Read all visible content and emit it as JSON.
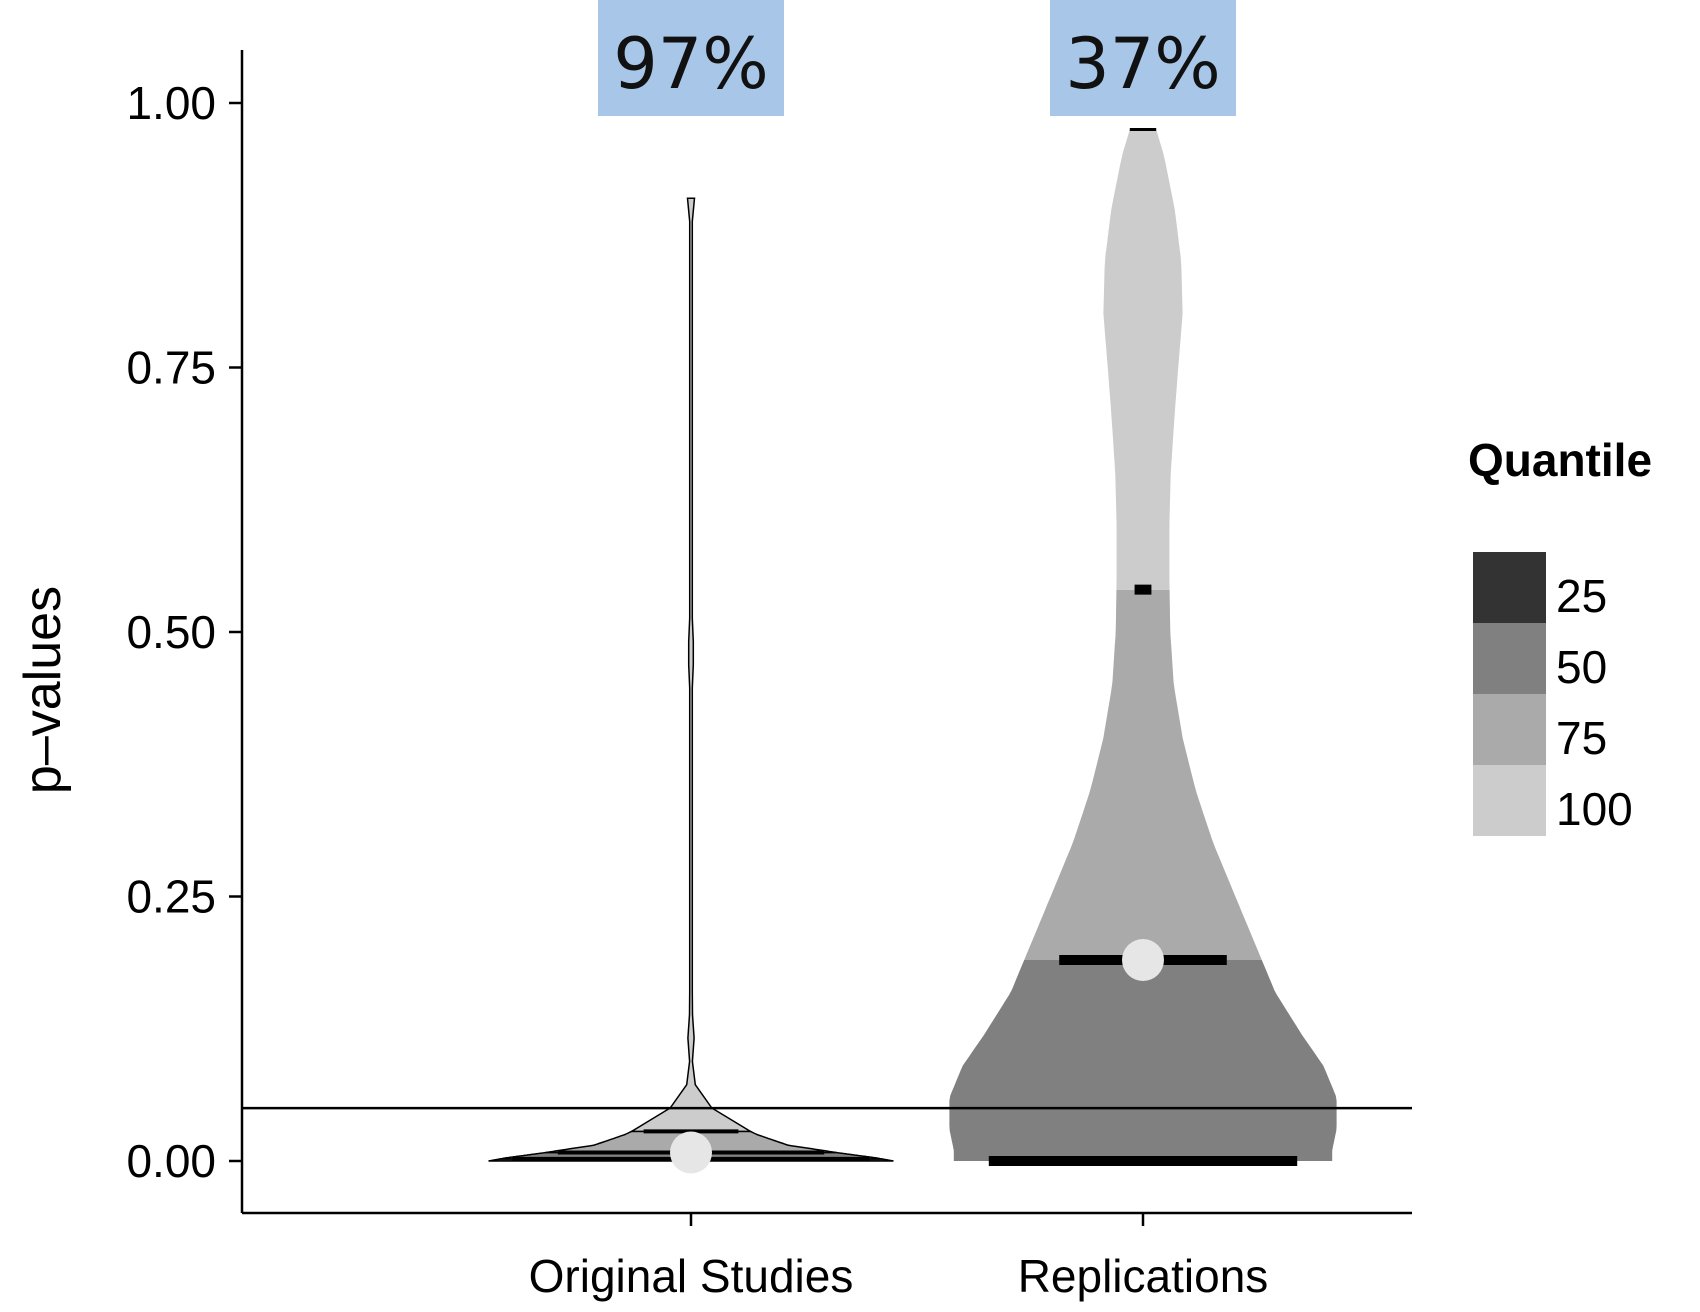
{
  "chart_data": {
    "type": "violin",
    "ylabel": "p–values",
    "xlabel": "",
    "ylim": [
      0,
      1.05
    ],
    "y_ticks": [
      "0.00",
      "0.25",
      "0.50",
      "0.75",
      "1.00"
    ],
    "y_tick_values": [
      0,
      0.25,
      0.5,
      0.75,
      1.0
    ],
    "categories": [
      "Original Studies",
      "Replications"
    ],
    "significance_line": 0.05,
    "groups": [
      {
        "name": "Original Studies",
        "percent_label": "97%",
        "min": 0.0,
        "max": 0.91,
        "quantile_breaks": [
          0.002,
          0.008,
          0.028
        ],
        "mean": 0.008,
        "density_profile": [
          [
            0.0,
            0.46
          ],
          [
            0.003,
            0.42
          ],
          [
            0.008,
            0.33
          ],
          [
            0.015,
            0.22
          ],
          [
            0.025,
            0.15
          ],
          [
            0.035,
            0.1
          ],
          [
            0.045,
            0.06
          ],
          [
            0.055,
            0.035
          ],
          [
            0.065,
            0.015
          ],
          [
            0.08,
            0.004
          ],
          [
            0.1,
            0.003
          ],
          [
            0.12,
            0.008
          ],
          [
            0.14,
            0.003
          ],
          [
            0.3,
            0.003
          ],
          [
            0.46,
            0.003
          ],
          [
            0.48,
            0.008
          ],
          [
            0.5,
            0.003
          ],
          [
            0.89,
            0.003
          ],
          [
            0.91,
            0.008
          ]
        ]
      },
      {
        "name": "Replications",
        "percent_label": "37%",
        "min": 0.0,
        "max": 0.975,
        "quantile_breaks": [
          0.0,
          0.19,
          0.54
        ],
        "mean": 0.19,
        "density_profile": [
          [
            0.0,
            0.43
          ],
          [
            0.01,
            0.43
          ],
          [
            0.03,
            0.44
          ],
          [
            0.06,
            0.44
          ],
          [
            0.09,
            0.41
          ],
          [
            0.12,
            0.36
          ],
          [
            0.16,
            0.3
          ],
          [
            0.19,
            0.27
          ],
          [
            0.25,
            0.21
          ],
          [
            0.3,
            0.16
          ],
          [
            0.35,
            0.12
          ],
          [
            0.4,
            0.09
          ],
          [
            0.45,
            0.07
          ],
          [
            0.5,
            0.062
          ],
          [
            0.55,
            0.06
          ],
          [
            0.6,
            0.06
          ],
          [
            0.65,
            0.063
          ],
          [
            0.7,
            0.071
          ],
          [
            0.75,
            0.08
          ],
          [
            0.8,
            0.09
          ],
          [
            0.85,
            0.087
          ],
          [
            0.9,
            0.072
          ],
          [
            0.95,
            0.048
          ],
          [
            0.975,
            0.03
          ]
        ]
      }
    ],
    "legend": {
      "title": "Quantile",
      "position": "right",
      "items": [
        {
          "label": "25",
          "color": "#333333"
        },
        {
          "label": "50",
          "color": "#808080"
        },
        {
          "label": "75",
          "color": "#aaaaaa"
        },
        {
          "label": "100",
          "color": "#cccccc"
        }
      ]
    },
    "colors": {
      "quantile_lines": "#000000",
      "mean_point": "#e6e6e6",
      "percent_box": "#a7c6e8"
    },
    "grid": false
  }
}
